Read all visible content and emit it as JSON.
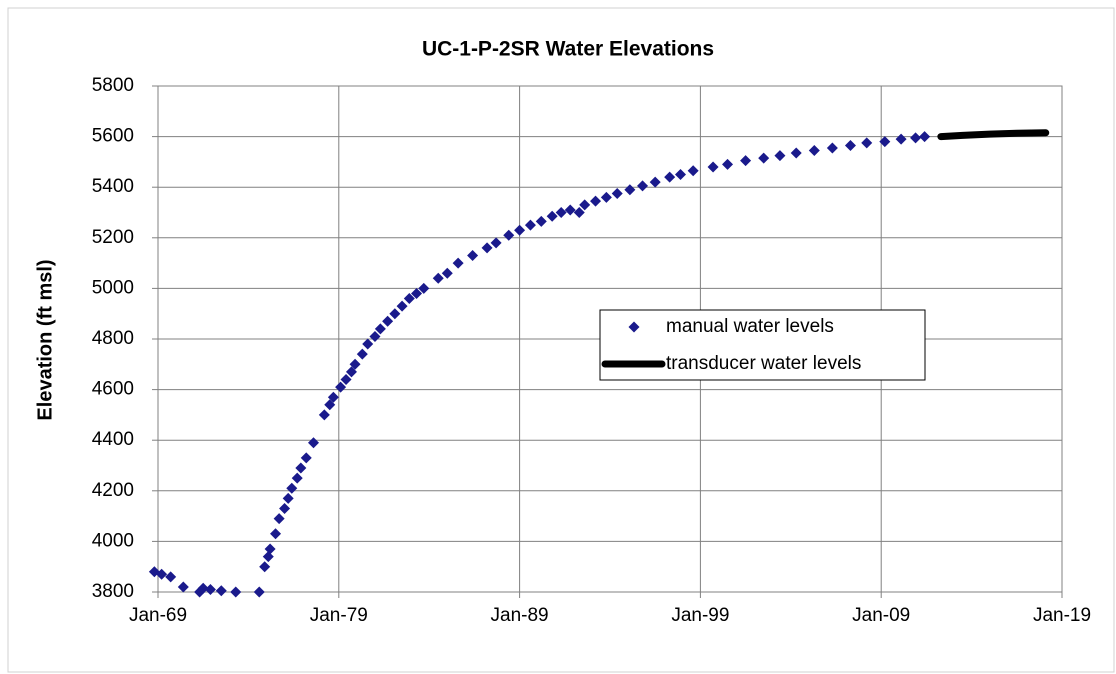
{
  "chart_data": {
    "type": "scatter",
    "title": "UC-1-P-2SR   Water Elevations",
    "y_label": "Elevation (ft msl)",
    "xlim": [
      1969,
      2019
    ],
    "xticks": [
      {
        "value": 1969,
        "label": "Jan-69"
      },
      {
        "value": 1979,
        "label": "Jan-79"
      },
      {
        "value": 1989,
        "label": "Jan-89"
      },
      {
        "value": 1999,
        "label": "Jan-99"
      },
      {
        "value": 2009,
        "label": "Jan-09"
      },
      {
        "value": 2019,
        "label": "Jan-19"
      }
    ],
    "ylim": [
      3800,
      5800
    ],
    "yticks": [
      3800,
      4000,
      4200,
      4400,
      4600,
      4800,
      5000,
      5200,
      5400,
      5600,
      5800
    ],
    "grid": true,
    "legend": "center-right",
    "series": [
      {
        "name": "manual water levels",
        "color": "#1a1a8c",
        "style": "markers",
        "x": [
          1968.8,
          1969.2,
          1969.7,
          1970.4,
          1971.3,
          1971.5,
          1971.9,
          1972.5,
          1973.3,
          1974.6,
          1974.9,
          1975.1,
          1975.2,
          1975.5,
          1975.7,
          1976.0,
          1976.2,
          1976.4,
          1976.7,
          1976.9,
          1977.2,
          1977.6,
          1978.2,
          1978.5,
          1978.7,
          1979.1,
          1979.4,
          1979.7,
          1979.9,
          1980.3,
          1980.6,
          1981.0,
          1981.3,
          1981.7,
          1982.1,
          1982.5,
          1982.9,
          1983.3,
          1983.7,
          1984.5,
          1985.0,
          1985.6,
          1986.4,
          1987.2,
          1987.7,
          1988.4,
          1989.0,
          1989.6,
          1990.2,
          1990.8,
          1991.3,
          1991.8,
          1992.3,
          1992.6,
          1993.2,
          1993.8,
          1994.4,
          1995.1,
          1995.8,
          1996.5,
          1997.3,
          1997.9,
          1998.6,
          1999.7,
          2000.5,
          2001.5,
          2002.5,
          2003.4,
          2004.3,
          2005.3,
          2006.3,
          2007.3,
          2008.2,
          2009.2,
          2010.1,
          2010.9,
          2011.4
        ],
        "values": [
          3880,
          3870,
          3860,
          3820,
          3800,
          3815,
          3810,
          3805,
          3800,
          3800,
          3900,
          3940,
          3970,
          4030,
          4090,
          4130,
          4170,
          4210,
          4250,
          4290,
          4330,
          4390,
          4500,
          4540,
          4570,
          4610,
          4640,
          4670,
          4700,
          4740,
          4780,
          4810,
          4840,
          4870,
          4900,
          4930,
          4960,
          4980,
          5000,
          5040,
          5060,
          5100,
          5130,
          5160,
          5180,
          5210,
          5230,
          5250,
          5265,
          5285,
          5300,
          5310,
          5300,
          5330,
          5345,
          5360,
          5375,
          5390,
          5405,
          5420,
          5440,
          5450,
          5465,
          5480,
          5490,
          5505,
          5515,
          5525,
          5535,
          5545,
          5555,
          5565,
          5575,
          5580,
          5590,
          5595,
          5600
        ]
      },
      {
        "name": "transducer water levels",
        "color": "#000000",
        "style": "line",
        "x": [
          2012.3,
          2013.5,
          2015.0,
          2016.5,
          2018.1
        ],
        "values": [
          5600,
          5605,
          5610,
          5613,
          5615
        ]
      }
    ]
  }
}
